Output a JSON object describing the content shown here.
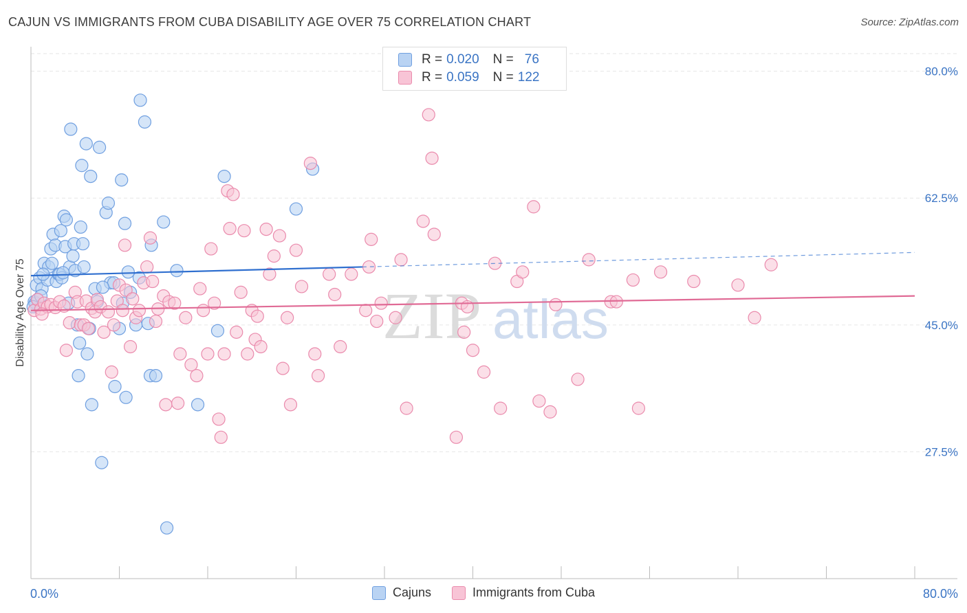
{
  "title": "CAJUN VS IMMIGRANTS FROM CUBA DISABILITY AGE OVER 75 CORRELATION CHART",
  "source": "Source: ZipAtlas.com",
  "watermark": {
    "part1": "ZIP",
    "part2": "atlas"
  },
  "colors": {
    "cajun_fill": "#b9d3f3",
    "cajun_stroke": "#6f9fe0",
    "cajun_line": "#2f6fcf",
    "cuba_fill": "#f8c4d6",
    "cuba_stroke": "#ea8aac",
    "cuba_line": "#e06a95",
    "tick_label": "#3a74c4",
    "grid": "#e6e6e6"
  },
  "legend": {
    "rows": [
      {
        "r_label": "R =",
        "r_value": "0.020",
        "n_label": "N =",
        "n_value": "76"
      },
      {
        "r_label": "R =",
        "r_value": "0.059",
        "n_label": "N =",
        "n_value": "122"
      }
    ]
  },
  "bottom_legend": {
    "series1": "Cajuns",
    "series2": "Immigrants from Cuba"
  },
  "chart_data": {
    "type": "scatter",
    "title": "CAJUN VS IMMIGRANTS FROM CUBA DISABILITY AGE OVER 75 CORRELATION CHART",
    "ylabel": "Disability Age Over 75",
    "xlim": [
      0,
      80
    ],
    "ylim": [
      10,
      83
    ],
    "x_tick_labels": [
      "0.0%",
      "80.0%"
    ],
    "y_ticks": [
      27.5,
      45.0,
      62.5,
      80.0
    ],
    "y_tick_labels": [
      "27.5%",
      "45.0%",
      "62.5%",
      "80.0%"
    ],
    "grid": true,
    "legend_position": "top-center",
    "series": [
      {
        "name": "Cajuns",
        "trend": {
          "x0": 0,
          "y0": 51.8,
          "x1": 30,
          "y1": 53.0,
          "dash_x1": 80,
          "dash_y1": 55.0
        },
        "points": [
          [
            0.3,
            48.2
          ],
          [
            0.5,
            50.5
          ],
          [
            0.8,
            51.5
          ],
          [
            1.0,
            50.0
          ],
          [
            1.2,
            53.5
          ],
          [
            1.5,
            51.2
          ],
          [
            1.6,
            53.0
          ],
          [
            1.8,
            55.5
          ],
          [
            1.9,
            53.5
          ],
          [
            2.0,
            57.5
          ],
          [
            2.2,
            56.0
          ],
          [
            2.3,
            51.0
          ],
          [
            2.5,
            52.0
          ],
          [
            2.6,
            52.0
          ],
          [
            2.7,
            58.0
          ],
          [
            2.8,
            51.5
          ],
          [
            3.0,
            60.0
          ],
          [
            3.1,
            55.8
          ],
          [
            3.2,
            59.5
          ],
          [
            3.4,
            48.0
          ],
          [
            3.5,
            53.0
          ],
          [
            3.6,
            72.0
          ],
          [
            3.8,
            54.5
          ],
          [
            3.9,
            56.2
          ],
          [
            4.0,
            52.5
          ],
          [
            4.2,
            45.0
          ],
          [
            4.3,
            38.0
          ],
          [
            4.4,
            42.5
          ],
          [
            4.5,
            58.5
          ],
          [
            4.6,
            67.0
          ],
          [
            4.7,
            56.2
          ],
          [
            4.8,
            53.0
          ],
          [
            5.0,
            70.0
          ],
          [
            5.1,
            41.0
          ],
          [
            5.3,
            44.5
          ],
          [
            5.4,
            65.5
          ],
          [
            5.5,
            34.0
          ],
          [
            5.8,
            50.0
          ],
          [
            6.0,
            48.2
          ],
          [
            6.2,
            69.5
          ],
          [
            6.4,
            26.0
          ],
          [
            6.8,
            60.5
          ],
          [
            7.0,
            61.8
          ],
          [
            7.2,
            50.8
          ],
          [
            7.5,
            50.8
          ],
          [
            7.6,
            36.5
          ],
          [
            8.0,
            44.5
          ],
          [
            8.2,
            65.0
          ],
          [
            8.3,
            48.0
          ],
          [
            8.5,
            59.0
          ],
          [
            8.6,
            35.0
          ],
          [
            8.8,
            52.3
          ],
          [
            9.0,
            49.5
          ],
          [
            9.5,
            45.0
          ],
          [
            9.8,
            51.5
          ],
          [
            9.9,
            76.0
          ],
          [
            10.3,
            73.0
          ],
          [
            10.6,
            45.2
          ],
          [
            10.8,
            38.0
          ],
          [
            10.9,
            56.0
          ],
          [
            11.3,
            38.0
          ],
          [
            12.0,
            59.2
          ],
          [
            13.2,
            52.5
          ],
          [
            15.1,
            34.0
          ],
          [
            12.3,
            17.0
          ],
          [
            16.9,
            44.2
          ],
          [
            17.5,
            65.5
          ],
          [
            24.0,
            61.0
          ],
          [
            25.5,
            66.5
          ],
          [
            0.4,
            48.0
          ],
          [
            0.6,
            48.5
          ],
          [
            1.1,
            52.0
          ],
          [
            2.9,
            52.2
          ],
          [
            6.5,
            50.2
          ],
          [
            0.9,
            49.0
          ],
          [
            0.2,
            47.5
          ]
        ]
      },
      {
        "name": "Immigrants from Cuba",
        "trend": {
          "x0": 0,
          "y0": 47.0,
          "x1": 80,
          "y1": 49.0
        },
        "points": [
          [
            0.3,
            47.0
          ],
          [
            0.6,
            48.5
          ],
          [
            0.9,
            47.2
          ],
          [
            1.2,
            48.0
          ],
          [
            1.5,
            47.5
          ],
          [
            1.8,
            47.8
          ],
          [
            2.2,
            47.4
          ],
          [
            2.6,
            48.2
          ],
          [
            3.0,
            47.6
          ],
          [
            3.2,
            41.5
          ],
          [
            3.5,
            45.3
          ],
          [
            4.0,
            49.5
          ],
          [
            4.2,
            48.2
          ],
          [
            4.5,
            45.0
          ],
          [
            4.8,
            45.0
          ],
          [
            5.0,
            48.3
          ],
          [
            5.2,
            44.5
          ],
          [
            5.5,
            47.3
          ],
          [
            5.8,
            46.8
          ],
          [
            6.0,
            48.5
          ],
          [
            6.3,
            47.5
          ],
          [
            6.6,
            44.0
          ],
          [
            7.0,
            46.8
          ],
          [
            7.3,
            38.5
          ],
          [
            7.5,
            45.0
          ],
          [
            7.8,
            48.3
          ],
          [
            8.0,
            50.5
          ],
          [
            8.3,
            47.0
          ],
          [
            8.5,
            56.0
          ],
          [
            8.6,
            49.8
          ],
          [
            9.0,
            42.0
          ],
          [
            9.2,
            48.6
          ],
          [
            9.5,
            46.0
          ],
          [
            9.8,
            47.0
          ],
          [
            10.2,
            50.8
          ],
          [
            10.5,
            53.0
          ],
          [
            10.8,
            57.0
          ],
          [
            11.0,
            51.0
          ],
          [
            11.3,
            45.5
          ],
          [
            11.5,
            47.2
          ],
          [
            12.0,
            49.0
          ],
          [
            12.2,
            34.0
          ],
          [
            12.5,
            48.2
          ],
          [
            13.0,
            48.0
          ],
          [
            13.3,
            34.2
          ],
          [
            13.5,
            41.0
          ],
          [
            14.0,
            46.0
          ],
          [
            14.5,
            39.5
          ],
          [
            15.0,
            38.0
          ],
          [
            15.3,
            50.0
          ],
          [
            15.6,
            47.0
          ],
          [
            16.0,
            41.0
          ],
          [
            16.3,
            55.5
          ],
          [
            16.6,
            48.0
          ],
          [
            17.0,
            32.0
          ],
          [
            17.2,
            29.5
          ],
          [
            17.5,
            41.0
          ],
          [
            17.8,
            63.5
          ],
          [
            18.0,
            58.3
          ],
          [
            18.3,
            63.0
          ],
          [
            18.6,
            44.0
          ],
          [
            19.0,
            49.5
          ],
          [
            19.3,
            58.0
          ],
          [
            19.6,
            41.0
          ],
          [
            20.0,
            47.0
          ],
          [
            20.3,
            43.0
          ],
          [
            20.5,
            46.2
          ],
          [
            20.8,
            42.0
          ],
          [
            21.3,
            58.2
          ],
          [
            21.6,
            52.0
          ],
          [
            22.0,
            54.5
          ],
          [
            22.5,
            57.3
          ],
          [
            22.8,
            39.0
          ],
          [
            23.2,
            46.0
          ],
          [
            23.5,
            34.0
          ],
          [
            24.0,
            55.3
          ],
          [
            24.5,
            50.3
          ],
          [
            25.3,
            67.3
          ],
          [
            25.7,
            41.0
          ],
          [
            26.0,
            38.0
          ],
          [
            27.0,
            52.0
          ],
          [
            27.5,
            49.2
          ],
          [
            28.0,
            42.0
          ],
          [
            29.0,
            52.0
          ],
          [
            30.3,
            47.0
          ],
          [
            30.6,
            53.0
          ],
          [
            30.8,
            56.8
          ],
          [
            31.3,
            45.5
          ],
          [
            31.7,
            48.0
          ],
          [
            33.0,
            46.0
          ],
          [
            33.5,
            54.0
          ],
          [
            34.0,
            33.5
          ],
          [
            35.5,
            59.3
          ],
          [
            36.0,
            74.0
          ],
          [
            36.3,
            68.0
          ],
          [
            36.5,
            57.5
          ],
          [
            38.5,
            29.5
          ],
          [
            39.0,
            48.0
          ],
          [
            39.2,
            44.0
          ],
          [
            39.5,
            47.5
          ],
          [
            40.0,
            41.5
          ],
          [
            41.0,
            38.5
          ],
          [
            42.0,
            53.5
          ],
          [
            42.5,
            33.5
          ],
          [
            44.0,
            51.0
          ],
          [
            44.5,
            52.3
          ],
          [
            45.5,
            61.3
          ],
          [
            46.0,
            34.5
          ],
          [
            47.0,
            33.0
          ],
          [
            47.5,
            47.8
          ],
          [
            49.5,
            37.5
          ],
          [
            50.5,
            54.0
          ],
          [
            52.5,
            48.2
          ],
          [
            53.0,
            48.2
          ],
          [
            54.5,
            51.2
          ],
          [
            55.0,
            33.5
          ],
          [
            57.0,
            52.3
          ],
          [
            60.0,
            51.0
          ],
          [
            64.0,
            50.5
          ],
          [
            67.0,
            53.3
          ],
          [
            65.5,
            46.0
          ],
          [
            1.0,
            46.5
          ]
        ]
      }
    ]
  }
}
